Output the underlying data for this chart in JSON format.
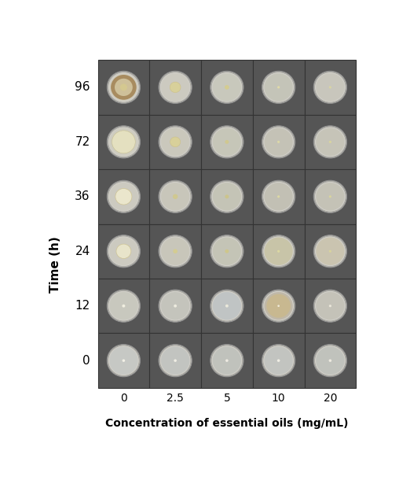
{
  "rows": [
    96,
    72,
    36,
    24,
    12,
    0
  ],
  "cols": [
    0,
    2.5,
    5,
    10,
    20
  ],
  "xlabel": "Concentration of essential oils (mg/mL)",
  "ylabel": "Time (h)",
  "background": "#ffffff",
  "cell_bg": "#555555",
  "col_labels": [
    "0",
    "2.5",
    "5",
    "10",
    "20"
  ],
  "row_labels": [
    "96",
    "72",
    "36",
    "24",
    "12",
    "0"
  ],
  "dish_rim_color": "#c8c8c0",
  "dish_outer_rim": "#b0b0a8",
  "fungal_growth": [
    [
      {
        "type": "large_ring",
        "color": "#cec09a",
        "ring_color": "#a88c60",
        "center_color": "#d4c890",
        "size": 0.9
      },
      {
        "type": "medium",
        "color": "#d8d09a",
        "size": 0.38
      },
      {
        "type": "small",
        "color": "#d4cc90",
        "size": 0.16
      },
      {
        "type": "tiny",
        "color": "#e0daa8",
        "size": 0.09
      },
      {
        "type": "tiny",
        "color": "#d8d4a4",
        "size": 0.09
      }
    ],
    [
      {
        "type": "large_fluffy",
        "color": "#e4e0c0",
        "ring_color": "#c8c490",
        "size": 0.82
      },
      {
        "type": "medium",
        "color": "#d8d09a",
        "size": 0.36
      },
      {
        "type": "small",
        "color": "#d0c890",
        "size": 0.14
      },
      {
        "type": "tiny",
        "color": "#dcd8a8",
        "size": 0.09
      },
      {
        "type": "tiny",
        "color": "#d8d4a0",
        "size": 0.09
      }
    ],
    [
      {
        "type": "medium_large",
        "color": "#eae6cc",
        "size": 0.58
      },
      {
        "type": "small",
        "color": "#d0c890",
        "size": 0.18
      },
      {
        "type": "small",
        "color": "#ccc48c",
        "size": 0.14
      },
      {
        "type": "tiny",
        "color": "#dcd8a4",
        "size": 0.09
      },
      {
        "type": "tiny",
        "color": "#d8d49e",
        "size": 0.09
      }
    ],
    [
      {
        "type": "medium",
        "color": "#e8e4ca",
        "size": 0.52
      },
      {
        "type": "small",
        "color": "#d4cc92",
        "size": 0.16
      },
      {
        "type": "small",
        "color": "#cec68c",
        "size": 0.14
      },
      {
        "type": "tiny",
        "color": "#dcd8a2",
        "size": 0.09
      },
      {
        "type": "tiny",
        "color": "#d8d49e",
        "size": 0.09
      }
    ],
    [
      {
        "type": "tiny_white",
        "color": "#f0eee0",
        "size": 0.11
      },
      {
        "type": "tiny_white",
        "color": "#eceade",
        "size": 0.11
      },
      {
        "type": "tiny_white",
        "color": "#eae8da",
        "size": 0.11
      },
      {
        "type": "small_tan",
        "color": "#c0aa80",
        "size": 0.3
      },
      {
        "type": "tiny_white",
        "color": "#eae6da",
        "size": 0.09
      }
    ],
    [
      {
        "type": "tiny_white",
        "color": "#f2f0e6",
        "size": 0.1
      },
      {
        "type": "tiny_white",
        "color": "#f0eee4",
        "size": 0.1
      },
      {
        "type": "tiny_white",
        "color": "#eeeae2",
        "size": 0.1
      },
      {
        "type": "tiny_white",
        "color": "#f0eee4",
        "size": 0.1
      },
      {
        "type": "tiny_white",
        "color": "#eeeae0",
        "size": 0.1
      }
    ]
  ],
  "dish_inner_colors": [
    [
      "#d0cdc0",
      "#cccac0",
      "#c8c8bc",
      "#c4c4b8",
      "#c8c6bc"
    ],
    [
      "#ceccc0",
      "#cac8bc",
      "#c6c6b8",
      "#c4c2b6",
      "#c6c4b8"
    ],
    [
      "#cccac0",
      "#c8c6ba",
      "#c4c4b6",
      "#c2c0b4",
      "#c4c2b6"
    ],
    [
      "#cccac0",
      "#c8c6ba",
      "#c4c4b6",
      "#c8c4a8",
      "#cac4b0"
    ],
    [
      "#c8c8be",
      "#c4c4bc",
      "#c0c4c4",
      "#c0b8a8",
      "#c4c2b8"
    ],
    [
      "#c6c8c4",
      "#c2c4c0",
      "#c0c2bc",
      "#c2c4c0",
      "#c0c2bc"
    ]
  ]
}
